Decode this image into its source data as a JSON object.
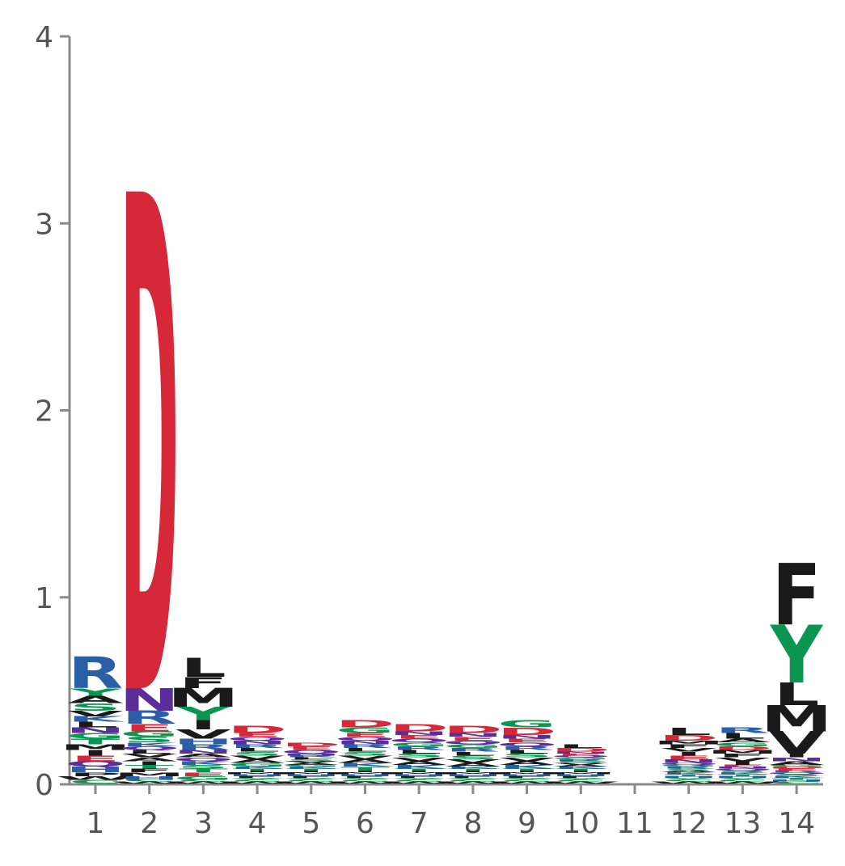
{
  "chart_data": {
    "type": "sequence-logo",
    "title": "",
    "xlabel": "",
    "ylabel": "",
    "ylim": [
      0,
      4
    ],
    "yticks": [
      0,
      1,
      2,
      3,
      4
    ],
    "ytick_labels": [
      "0",
      "1",
      "2",
      "3",
      "4"
    ],
    "xticks": [
      1,
      2,
      3,
      4,
      5,
      6,
      7,
      8,
      9,
      10,
      11,
      12,
      13,
      14
    ],
    "xtick_labels": [
      "1",
      "2",
      "3",
      "4",
      "5",
      "6",
      "7",
      "8",
      "9",
      "10",
      "11",
      "12",
      "13",
      "14"
    ],
    "grid": false,
    "colors": {
      "acidic": "#d62839",
      "polar": "#5b2d9a",
      "basic": "#2a5ea6",
      "hydrophobic": "#1a1a1a",
      "neutral": "#0a9650",
      "misc": "#1aa37a"
    },
    "letter_colors": {
      "D": "#d62839",
      "E": "#d62839",
      "N": "#5b2d9a",
      "Q": "#5b2d9a",
      "R": "#2a5ea6",
      "K": "#2a5ea6",
      "H": "#2a5ea6",
      "F": "#1a1a1a",
      "L": "#1a1a1a",
      "M": "#1a1a1a",
      "V": "#1a1a1a",
      "I": "#1a1a1a",
      "A": "#1a1a1a",
      "W": "#1a1a1a",
      "P": "#1a1a1a",
      "Y": "#0a9650",
      "G": "#0a9650",
      "S": "#0a9650",
      "T": "#0a9650",
      "C": "#0a9650"
    },
    "positions": [
      {
        "pos": 1,
        "stack": [
          [
            "C",
            0.02
          ],
          [
            "W",
            0.02
          ],
          [
            "P",
            0.02
          ],
          [
            "H",
            0.03
          ],
          [
            "Q",
            0.03
          ],
          [
            "E",
            0.03
          ],
          [
            "I",
            0.03
          ],
          [
            "M",
            0.03
          ],
          [
            "T",
            0.03
          ],
          [
            "G",
            0.03
          ],
          [
            "N",
            0.03
          ],
          [
            "L",
            0.03
          ],
          [
            "K",
            0.03
          ],
          [
            "V",
            0.03
          ],
          [
            "S",
            0.04
          ],
          [
            "A",
            0.04
          ],
          [
            "Y",
            0.04
          ],
          [
            "R",
            0.17
          ]
        ]
      },
      {
        "pos": 2,
        "stack": [
          [
            "W",
            0.01
          ],
          [
            "C",
            0.01
          ],
          [
            "H",
            0.02
          ],
          [
            "M",
            0.02
          ],
          [
            "F",
            0.02
          ],
          [
            "T",
            0.02
          ],
          [
            "I",
            0.02
          ],
          [
            "A",
            0.02
          ],
          [
            "V",
            0.02
          ],
          [
            "L",
            0.02
          ],
          [
            "Q",
            0.02
          ],
          [
            "K",
            0.02
          ],
          [
            "S",
            0.03
          ],
          [
            "G",
            0.03
          ],
          [
            "E",
            0.04
          ],
          [
            "R",
            0.07
          ],
          [
            "N",
            0.12
          ],
          [
            "D",
            2.66
          ]
        ]
      },
      {
        "pos": 3,
        "stack": [
          [
            "W",
            0.01
          ],
          [
            "C",
            0.01
          ],
          [
            "G",
            0.02
          ],
          [
            "E",
            0.02
          ],
          [
            "T",
            0.02
          ],
          [
            "S",
            0.02
          ],
          [
            "K",
            0.02
          ],
          [
            "Q",
            0.02
          ],
          [
            "A",
            0.02
          ],
          [
            "N",
            0.02
          ],
          [
            "R",
            0.03
          ],
          [
            "H",
            0.03
          ],
          [
            "V",
            0.05
          ],
          [
            "I",
            0.05
          ],
          [
            "Y",
            0.07
          ],
          [
            "M",
            0.1
          ],
          [
            "F",
            0.06
          ],
          [
            "L",
            0.1
          ]
        ]
      },
      {
        "pos": 4,
        "stack": [
          [
            "W",
            0.01
          ],
          [
            "C",
            0.01
          ],
          [
            "Y",
            0.01
          ],
          [
            "F",
            0.01
          ],
          [
            "H",
            0.01
          ],
          [
            "M",
            0.01
          ],
          [
            "I",
            0.01
          ],
          [
            "T",
            0.01
          ],
          [
            "K",
            0.01
          ],
          [
            "G",
            0.02
          ],
          [
            "A",
            0.02
          ],
          [
            "V",
            0.02
          ],
          [
            "S",
            0.02
          ],
          [
            "L",
            0.02
          ],
          [
            "R",
            0.02
          ],
          [
            "N",
            0.02
          ],
          [
            "Q",
            0.02
          ],
          [
            "E",
            0.02
          ],
          [
            "D",
            0.04
          ]
        ]
      },
      {
        "pos": 5,
        "stack": [
          [
            "W",
            0.01
          ],
          [
            "C",
            0.01
          ],
          [
            "Y",
            0.01
          ],
          [
            "F",
            0.01
          ],
          [
            "H",
            0.01
          ],
          [
            "M",
            0.01
          ],
          [
            "I",
            0.01
          ],
          [
            "T",
            0.01
          ],
          [
            "K",
            0.01
          ],
          [
            "G",
            0.01
          ],
          [
            "A",
            0.01
          ],
          [
            "V",
            0.01
          ],
          [
            "S",
            0.01
          ],
          [
            "L",
            0.01
          ],
          [
            "R",
            0.01
          ],
          [
            "N",
            0.01
          ],
          [
            "Q",
            0.02
          ],
          [
            "E",
            0.02
          ],
          [
            "D",
            0.02
          ]
        ]
      },
      {
        "pos": 6,
        "stack": [
          [
            "W",
            0.01
          ],
          [
            "C",
            0.01
          ],
          [
            "Y",
            0.01
          ],
          [
            "F",
            0.01
          ],
          [
            "H",
            0.01
          ],
          [
            "M",
            0.01
          ],
          [
            "I",
            0.01
          ],
          [
            "T",
            0.02
          ],
          [
            "K",
            0.02
          ],
          [
            "A",
            0.02
          ],
          [
            "V",
            0.02
          ],
          [
            "S",
            0.02
          ],
          [
            "L",
            0.02
          ],
          [
            "R",
            0.02
          ],
          [
            "N",
            0.02
          ],
          [
            "Q",
            0.02
          ],
          [
            "E",
            0.02
          ],
          [
            "G",
            0.03
          ],
          [
            "D",
            0.04
          ]
        ]
      },
      {
        "pos": 7,
        "stack": [
          [
            "W",
            0.01
          ],
          [
            "C",
            0.01
          ],
          [
            "Y",
            0.01
          ],
          [
            "F",
            0.01
          ],
          [
            "H",
            0.01
          ],
          [
            "M",
            0.01
          ],
          [
            "I",
            0.01
          ],
          [
            "T",
            0.01
          ],
          [
            "K",
            0.02
          ],
          [
            "A",
            0.02
          ],
          [
            "V",
            0.02
          ],
          [
            "S",
            0.02
          ],
          [
            "L",
            0.02
          ],
          [
            "R",
            0.02
          ],
          [
            "G",
            0.02
          ],
          [
            "Q",
            0.02
          ],
          [
            "E",
            0.02
          ],
          [
            "N",
            0.02
          ],
          [
            "D",
            0.04
          ]
        ]
      },
      {
        "pos": 8,
        "stack": [
          [
            "W",
            0.01
          ],
          [
            "C",
            0.01
          ],
          [
            "Y",
            0.01
          ],
          [
            "F",
            0.01
          ],
          [
            "H",
            0.01
          ],
          [
            "M",
            0.01
          ],
          [
            "I",
            0.01
          ],
          [
            "T",
            0.01
          ],
          [
            "K",
            0.01
          ],
          [
            "A",
            0.02
          ],
          [
            "V",
            0.02
          ],
          [
            "S",
            0.02
          ],
          [
            "L",
            0.02
          ],
          [
            "R",
            0.02
          ],
          [
            "G",
            0.02
          ],
          [
            "Q",
            0.02
          ],
          [
            "E",
            0.02
          ],
          [
            "N",
            0.02
          ],
          [
            "D",
            0.04
          ]
        ]
      },
      {
        "pos": 9,
        "stack": [
          [
            "W",
            0.01
          ],
          [
            "C",
            0.01
          ],
          [
            "Y",
            0.01
          ],
          [
            "F",
            0.01
          ],
          [
            "H",
            0.01
          ],
          [
            "M",
            0.01
          ],
          [
            "I",
            0.01
          ],
          [
            "T",
            0.01
          ],
          [
            "K",
            0.02
          ],
          [
            "A",
            0.02
          ],
          [
            "V",
            0.02
          ],
          [
            "S",
            0.02
          ],
          [
            "L",
            0.02
          ],
          [
            "R",
            0.02
          ],
          [
            "Q",
            0.02
          ],
          [
            "E",
            0.02
          ],
          [
            "N",
            0.02
          ],
          [
            "D",
            0.04
          ],
          [
            "G",
            0.04
          ]
        ]
      },
      {
        "pos": 10,
        "stack": [
          [
            "W",
            0.01
          ],
          [
            "C",
            0.01
          ],
          [
            "Y",
            0.01
          ],
          [
            "F",
            0.01
          ],
          [
            "H",
            0.01
          ],
          [
            "M",
            0.01
          ],
          [
            "I",
            0.01
          ],
          [
            "T",
            0.01
          ],
          [
            "K",
            0.01
          ],
          [
            "A",
            0.01
          ],
          [
            "V",
            0.01
          ],
          [
            "S",
            0.01
          ],
          [
            "R",
            0.01
          ],
          [
            "G",
            0.01
          ],
          [
            "Q",
            0.01
          ],
          [
            "E",
            0.01
          ],
          [
            "N",
            0.01
          ],
          [
            "D",
            0.02
          ],
          [
            "L",
            0.02
          ]
        ]
      },
      {
        "pos": 11,
        "stack": []
      },
      {
        "pos": 12,
        "stack": [
          [
            "W",
            0.01
          ],
          [
            "C",
            0.01
          ],
          [
            "Y",
            0.01
          ],
          [
            "H",
            0.01
          ],
          [
            "T",
            0.01
          ],
          [
            "K",
            0.01
          ],
          [
            "A",
            0.01
          ],
          [
            "S",
            0.01
          ],
          [
            "R",
            0.01
          ],
          [
            "G",
            0.01
          ],
          [
            "Q",
            0.01
          ],
          [
            "N",
            0.02
          ],
          [
            "E",
            0.02
          ],
          [
            "I",
            0.02
          ],
          [
            "V",
            0.02
          ],
          [
            "F",
            0.02
          ],
          [
            "M",
            0.02
          ],
          [
            "D",
            0.03
          ],
          [
            "L",
            0.04
          ]
        ]
      },
      {
        "pos": 13,
        "stack": [
          [
            "W",
            0.01
          ],
          [
            "C",
            0.01
          ],
          [
            "Y",
            0.01
          ],
          [
            "H",
            0.01
          ],
          [
            "T",
            0.01
          ],
          [
            "K",
            0.01
          ],
          [
            "S",
            0.01
          ],
          [
            "Q",
            0.01
          ],
          [
            "N",
            0.01
          ],
          [
            "E",
            0.01
          ],
          [
            "I",
            0.02
          ],
          [
            "V",
            0.02
          ],
          [
            "F",
            0.02
          ],
          [
            "M",
            0.02
          ],
          [
            "D",
            0.02
          ],
          [
            "G",
            0.02
          ],
          [
            "A",
            0.02
          ],
          [
            "L",
            0.03
          ],
          [
            "R",
            0.03
          ]
        ]
      },
      {
        "pos": 14,
        "stack": [
          [
            "C",
            0.01
          ],
          [
            "H",
            0.01
          ],
          [
            "T",
            0.01
          ],
          [
            "K",
            0.01
          ],
          [
            "S",
            0.01
          ],
          [
            "Q",
            0.01
          ],
          [
            "R",
            0.01
          ],
          [
            "E",
            0.01
          ],
          [
            "D",
            0.01
          ],
          [
            "G",
            0.01
          ],
          [
            "A",
            0.02
          ],
          [
            "N",
            0.02
          ],
          [
            "I",
            0.02
          ],
          [
            "V",
            0.12
          ],
          [
            "M",
            0.14
          ],
          [
            "L",
            0.12
          ],
          [
            "Y",
            0.31
          ],
          [
            "F",
            0.33
          ]
        ]
      }
    ]
  }
}
